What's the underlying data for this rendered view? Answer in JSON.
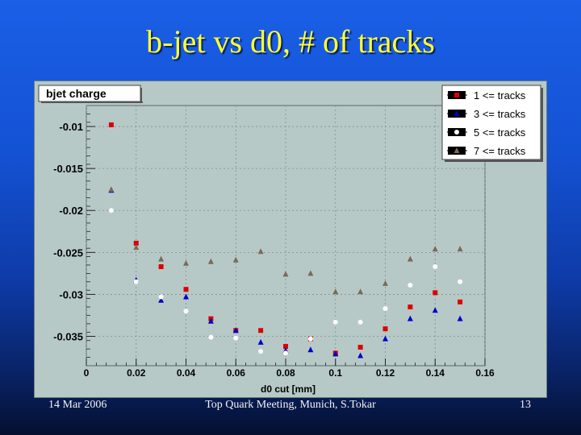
{
  "slide": {
    "title": "b-jet vs d0, # of tracks",
    "footer_left": "14 Mar 2006",
    "footer_center": "Top Quark Meeting, Munich, S.Tokar",
    "footer_right": "13"
  },
  "colors": {
    "plot_background": "#b7c9c7",
    "series": [
      "#dd0000",
      "#0000cc",
      "#ffffff",
      "#7a6a5a"
    ]
  },
  "chart_data": {
    "type": "scatter",
    "title": "bjet charge",
    "xlabel": "d0 cut [mm]",
    "ylabel": "",
    "xlim": [
      0,
      0.16
    ],
    "ylim": [
      -0.0385,
      -0.0075
    ],
    "xticks": [
      0,
      0.02,
      0.04,
      0.06,
      0.08,
      0.1,
      0.12,
      0.14,
      0.16
    ],
    "xtick_labels": [
      "0",
      "0.02",
      "0.04",
      "0.06",
      "0.08",
      "0.1",
      "0.12",
      "0.14",
      "0.16"
    ],
    "yticks": [
      -0.01,
      -0.015,
      -0.02,
      -0.025,
      -0.03,
      -0.035
    ],
    "ytick_labels": [
      "-0.01",
      "-0.015",
      "-0.02",
      "-0.025",
      "-0.03",
      "-0.035"
    ],
    "grid": true,
    "legend_position": "top-right",
    "series": [
      {
        "name": "1 <= tracks",
        "marker": "square",
        "color": "#dd0000",
        "x": [
          0.01,
          0.02,
          0.03,
          0.04,
          0.05,
          0.06,
          0.07,
          0.08,
          0.09,
          0.1,
          0.11,
          0.12,
          0.13,
          0.14,
          0.15
        ],
        "y": [
          -0.0098,
          -0.0239,
          -0.0267,
          -0.0294,
          -0.0329,
          -0.0343,
          -0.0343,
          -0.0362,
          -0.0353,
          -0.037,
          -0.0363,
          -0.0341,
          -0.0315,
          -0.0298,
          -0.0309
        ]
      },
      {
        "name": "3 <= tracks",
        "marker": "triangle",
        "color": "#0000cc",
        "x": [
          0.01,
          0.02,
          0.03,
          0.04,
          0.05,
          0.06,
          0.07,
          0.08,
          0.09,
          0.1,
          0.11,
          0.12,
          0.13,
          0.14,
          0.15
        ],
        "y": [
          -0.0176,
          -0.0283,
          -0.0307,
          -0.0303,
          -0.0332,
          -0.0343,
          -0.0357,
          -0.0367,
          -0.0366,
          -0.0371,
          -0.0373,
          -0.0353,
          -0.0329,
          -0.0319,
          -0.0329
        ]
      },
      {
        "name": "5 <= tracks",
        "marker": "circle",
        "color": "#ffffff",
        "x": [
          0.01,
          0.02,
          0.03,
          0.04,
          0.05,
          0.06,
          0.07,
          0.08,
          0.09,
          0.1,
          0.11,
          0.12,
          0.13,
          0.14,
          0.15
        ],
        "y": [
          -0.02,
          -0.0285,
          -0.0303,
          -0.032,
          -0.0351,
          -0.0352,
          -0.0368,
          -0.037,
          -0.0353,
          -0.0333,
          -0.0333,
          -0.0317,
          -0.0289,
          -0.0267,
          -0.0285
        ]
      },
      {
        "name": "7 <= tracks",
        "marker": "triangle",
        "color": "#7a6a5a",
        "x": [
          0.01,
          0.02,
          0.03,
          0.04,
          0.05,
          0.06,
          0.07,
          0.08,
          0.09,
          0.1,
          0.11,
          0.12,
          0.13,
          0.14,
          0.15
        ],
        "y": [
          -0.0175,
          -0.0244,
          -0.0258,
          -0.0263,
          -0.0261,
          -0.0259,
          -0.0249,
          -0.0276,
          -0.0275,
          -0.0297,
          -0.0297,
          -0.0287,
          -0.0258,
          -0.0246,
          -0.0246
        ]
      }
    ]
  }
}
